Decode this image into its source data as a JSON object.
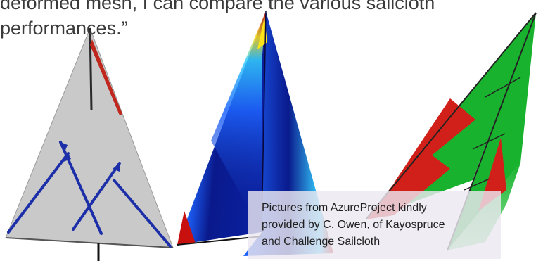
{
  "slide": {
    "quote_lines": [
      "deformed mesh, I can compare the various sailcloth",
      "performances.”"
    ],
    "caption_lines": [
      "Pictures from AzureProject kindly",
      "provided by C. Owen, of Kayospruce",
      "and Challenge Sailcloth"
    ]
  },
  "figures": [
    {
      "name": "gray-sail-mesh",
      "fill_color": "#c9c9c9",
      "load_path_color": "#1c2fa8",
      "accent_color": "#c0281e"
    },
    {
      "name": "stress-heatmap-sail",
      "palette": [
        "#0a1a8c",
        "#1e64ff",
        "#35d0ff",
        "#8cf08c",
        "#ffe21a",
        "#ff7a14",
        "#c8100e"
      ]
    },
    {
      "name": "green-red-sail",
      "colors": [
        "#18b22e",
        "#d1201a",
        "#7fe08a"
      ]
    }
  ]
}
